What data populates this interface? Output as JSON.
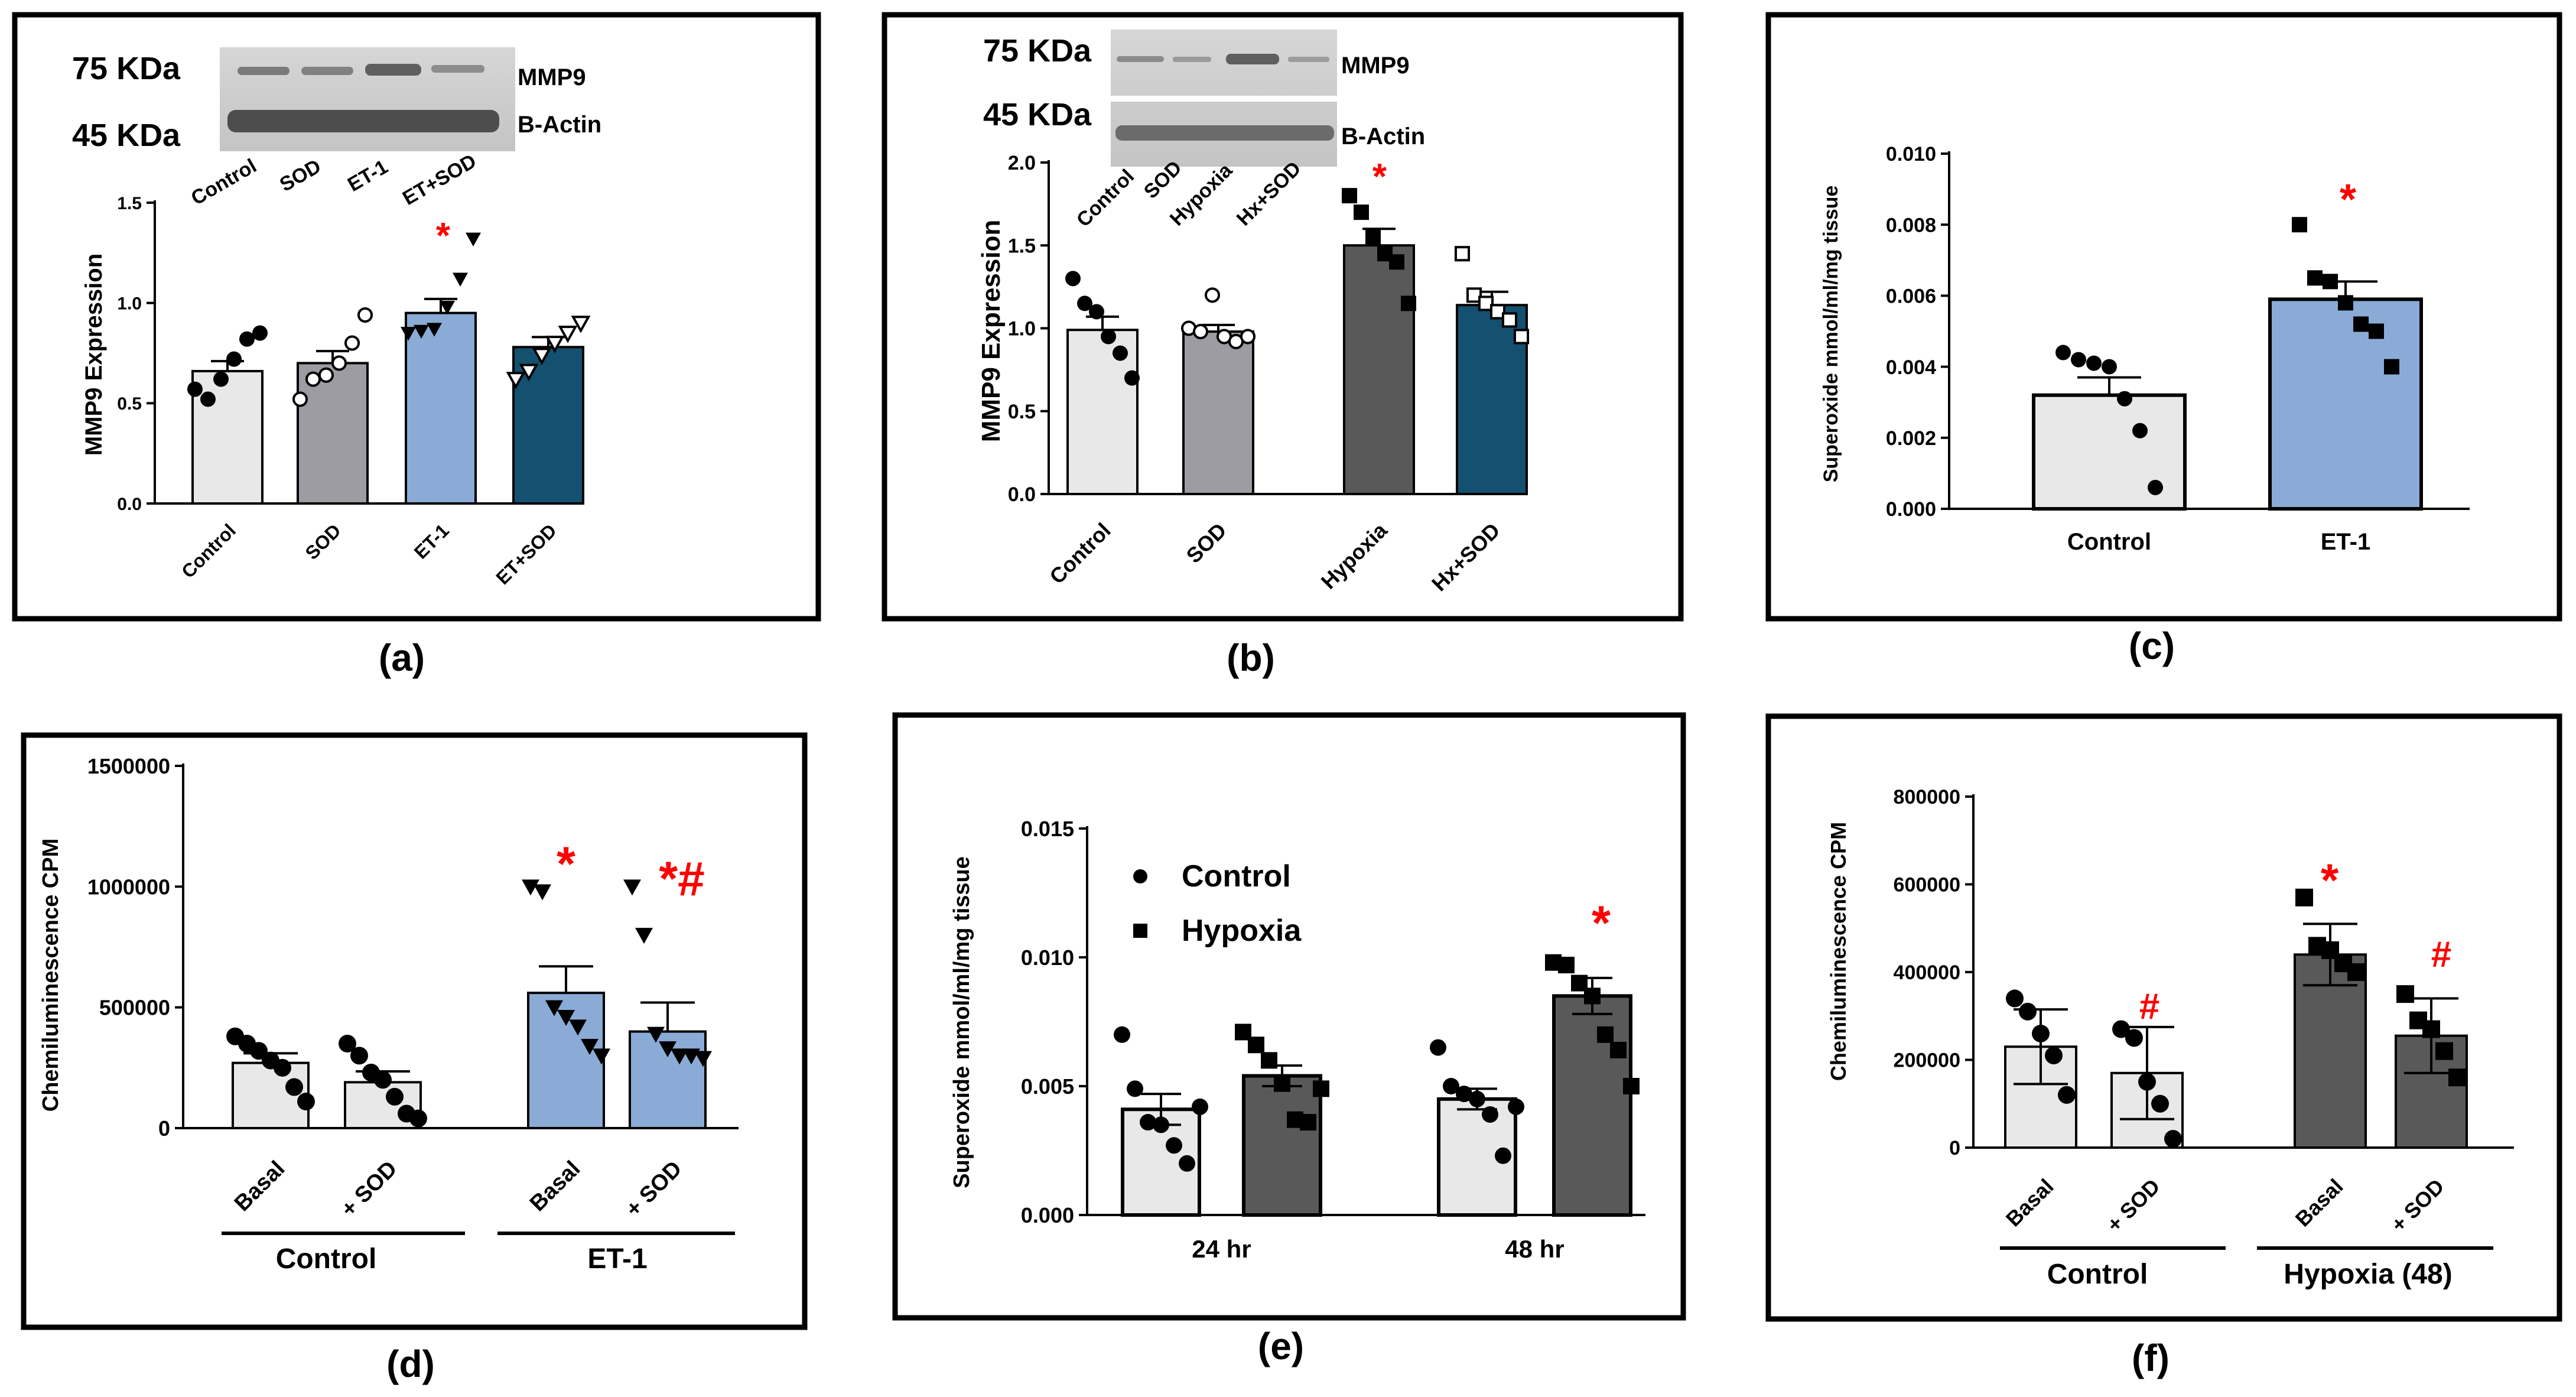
{
  "colors": {
    "light_gray": "#e8e8e8",
    "medium_gray": "#9e9ca3",
    "light_blue": "#8aabd5",
    "dark_blue": "#14506f",
    "dark_gray": "#595959",
    "red": "#ff0000",
    "border": "#000000"
  },
  "panels": {
    "a": {
      "caption": "(a)",
      "blot": {
        "kda_top": "75 KDa",
        "kda_bottom": "45 KDa",
        "band_top": "MMP9",
        "band_bottom": "B-Actin",
        "lanes": [
          "Control",
          "SOD",
          "ET-1",
          "ET+SOD"
        ]
      },
      "ylabel": "MMP9 Expression",
      "star": "*"
    },
    "b": {
      "caption": "(b)",
      "blot": {
        "kda_top": "75 KDa",
        "kda_bottom": "45 KDa",
        "band_top": "MMP9",
        "band_bottom": "B-Actin",
        "lanes": [
          "Control",
          "SOD",
          "Hypoxia",
          "Hx+SOD"
        ]
      },
      "ylabel": "MMP9 Expression",
      "star": "*"
    },
    "c": {
      "caption": "(c)",
      "ylabel": "Superoxide  mmol/ml/mg tissue",
      "star": "*"
    },
    "d": {
      "caption": "(d)",
      "ylabel": "Chemiluminescence CPM",
      "groups": [
        "Control",
        "ET-1"
      ],
      "star1": "*",
      "star2": "*#"
    },
    "e": {
      "caption": "(e)",
      "ylabel": "Superoxide  mmol/ml/mg tissue",
      "star": "*",
      "legend": [
        "Control",
        "Hypoxia"
      ]
    },
    "f": {
      "caption": "(f)",
      "ylabel": "Chemiluminescence CPM",
      "groups": [
        "Control",
        "Hypoxia (48)"
      ],
      "hash1": "#",
      "star": "*",
      "hash2": "#"
    }
  },
  "chart_data": [
    {
      "panel": "a",
      "type": "bar",
      "categories": [
        "Control",
        "SOD",
        "ET-1",
        "ET+SOD"
      ],
      "values": [
        0.66,
        0.7,
        0.95,
        0.78
      ],
      "sem": [
        0.05,
        0.06,
        0.07,
        0.05
      ],
      "points": [
        [
          0.57,
          0.52,
          0.62,
          0.72,
          0.82,
          0.85
        ],
        [
          0.52,
          0.62,
          0.64,
          0.7,
          0.8,
          0.94
        ],
        [
          0.85,
          0.86,
          0.87,
          0.98,
          1.12,
          1.32
        ],
        [
          0.62,
          0.66,
          0.74,
          0.8,
          0.85,
          0.9
        ]
      ],
      "ylabel": "MMP9 Expression",
      "ylim": [
        0,
        1.5
      ],
      "yticks": [
        "0.0",
        "0.5",
        "1.0",
        "1.5"
      ]
    },
    {
      "panel": "b",
      "type": "bar",
      "categories": [
        "Control",
        "SOD",
        "Hypoxia",
        "Hx+SOD"
      ],
      "values": [
        0.99,
        0.98,
        1.5,
        1.14
      ],
      "sem": [
        0.08,
        0.04,
        0.1,
        0.08
      ],
      "points": [
        [
          1.3,
          1.15,
          1.1,
          0.95,
          0.85,
          0.7
        ],
        [
          1.0,
          0.98,
          1.2,
          0.95,
          0.92,
          0.95
        ],
        [
          1.8,
          1.7,
          1.55,
          1.45,
          1.4,
          1.15
        ],
        [
          1.45,
          1.2,
          1.15,
          1.1,
          1.05,
          0.95
        ]
      ],
      "ylabel": "MMP9 Expression",
      "ylim": [
        0,
        2.0
      ],
      "yticks": [
        "0.0",
        "0.5",
        "1.0",
        "1.5",
        "2.0"
      ]
    },
    {
      "panel": "c",
      "type": "bar",
      "categories": [
        "Control",
        "ET-1"
      ],
      "values": [
        0.0032,
        0.0059
      ],
      "sem": [
        0.0005,
        0.0005
      ],
      "points": [
        [
          0.0044,
          0.0042,
          0.0041,
          0.004,
          0.0031,
          0.0022,
          0.0006
        ],
        [
          0.008,
          0.0065,
          0.0064,
          0.0058,
          0.0052,
          0.005,
          0.004
        ]
      ],
      "ylabel": "Superoxide  mmol/ml/mg tissue",
      "ylim": [
        0,
        0.01
      ],
      "yticks": [
        "0.000",
        "0.002",
        "0.004",
        "0.006",
        "0.008",
        "0.010"
      ]
    },
    {
      "panel": "d",
      "type": "bar",
      "categories": [
        "Basal",
        "+ SOD",
        "Basal",
        "+ SOD"
      ],
      "values": [
        270000,
        190000,
        560000,
        400000
      ],
      "sem": [
        40000,
        45000,
        110000,
        120000
      ],
      "points": [
        [
          380000,
          350000,
          320000,
          280000,
          250000,
          170000,
          110000
        ],
        [
          350000,
          300000,
          230000,
          200000,
          130000,
          60000,
          40000
        ],
        [
          1000000,
          980000,
          500000,
          460000,
          420000,
          340000,
          300000
        ],
        [
          1000000,
          800000,
          390000,
          330000,
          300000,
          300000,
          290000
        ]
      ],
      "ylabel": "Chemiluminescence CPM",
      "ylim": [
        0,
        1500000
      ],
      "yticks": [
        "0",
        "500000",
        "1000000",
        "1500000"
      ]
    },
    {
      "panel": "e",
      "type": "bar",
      "categories": [
        "24 hr",
        "48 hr"
      ],
      "series": [
        {
          "name": "Control",
          "values": [
            0.0041,
            0.0045
          ],
          "sem": [
            0.0006,
            0.0004
          ],
          "points": [
            [
              0.007,
              0.0049,
              0.0036,
              0.0035,
              0.0027,
              0.002,
              0.0042
            ],
            [
              0.0065,
              0.005,
              0.0047,
              0.0045,
              0.0039,
              0.0023,
              0.0042
            ]
          ]
        },
        {
          "name": "Hypoxia",
          "values": [
            0.0054,
            0.0085
          ],
          "sem": [
            0.0004,
            0.0007
          ],
          "points": [
            [
              0.0071,
              0.0066,
              0.006,
              0.0051,
              0.0037,
              0.0036,
              0.0049
            ],
            [
              0.0098,
              0.0097,
              0.009,
              0.0085,
              0.007,
              0.0064,
              0.005
            ]
          ]
        }
      ],
      "ylabel": "Superoxide  mmol/ml/mg tissue",
      "ylim": [
        0,
        0.015
      ],
      "yticks": [
        "0.000",
        "0.005",
        "0.010",
        "0.015"
      ],
      "legend": "top-left"
    },
    {
      "panel": "f",
      "type": "bar",
      "categories": [
        "Basal",
        "+ SOD",
        "Basal",
        "+ SOD"
      ],
      "values": [
        230000,
        170000,
        440000,
        255000
      ],
      "sd": [
        85000,
        105000,
        70000,
        85000
      ],
      "points": [
        [
          340000,
          310000,
          260000,
          210000,
          120000
        ],
        [
          270000,
          250000,
          150000,
          100000,
          20000
        ],
        [
          570000,
          460000,
          450000,
          420000,
          400000
        ],
        [
          350000,
          290000,
          270000,
          220000,
          160000
        ]
      ],
      "ylabel": "Chemiluminescence CPM",
      "ylim": [
        0,
        800000
      ],
      "yticks": [
        "0",
        "200000",
        "400000",
        "600000",
        "800000"
      ]
    }
  ]
}
